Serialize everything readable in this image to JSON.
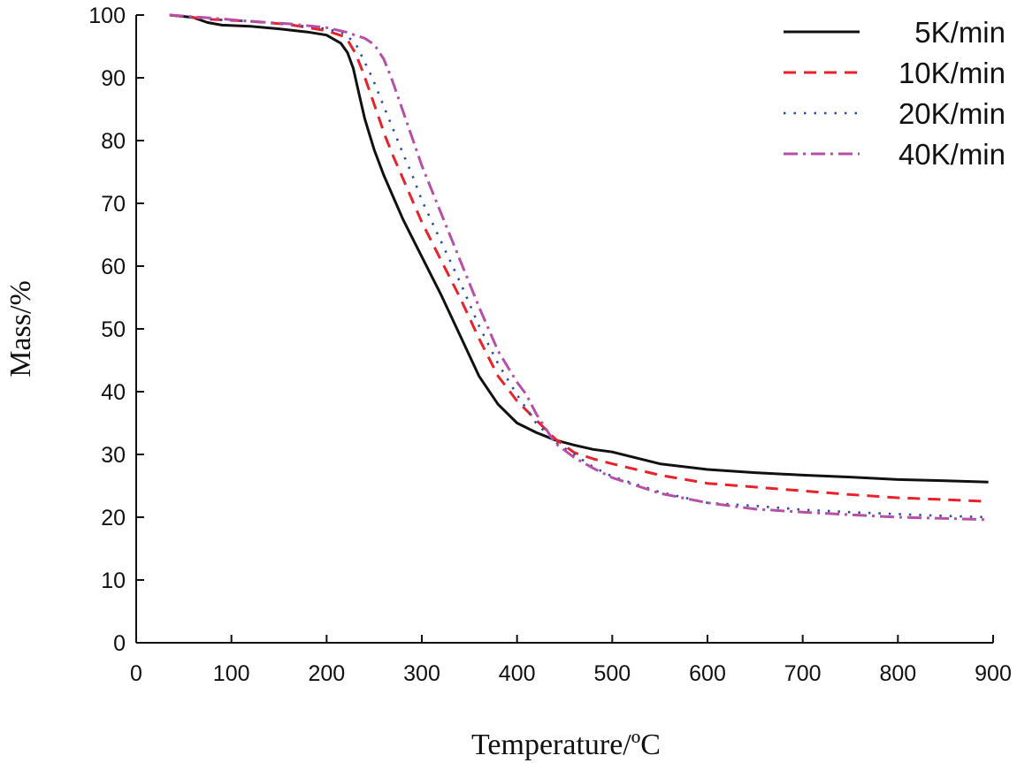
{
  "chart_data": {
    "type": "line",
    "title": "",
    "xlabel": "Temperature/ºC",
    "ylabel": "Mass/%",
    "xlim": [
      0,
      900
    ],
    "ylim": [
      0,
      100
    ],
    "xticks": [
      0,
      100,
      200,
      300,
      400,
      500,
      600,
      700,
      800,
      900
    ],
    "yticks": [
      0,
      10,
      20,
      30,
      40,
      50,
      60,
      70,
      80,
      90,
      100
    ],
    "grid": false,
    "legend_position": "top-right",
    "series": [
      {
        "name": "5K/min",
        "color": "#111111",
        "style": "solid",
        "x": [
          35,
          60,
          75,
          90,
          120,
          150,
          180,
          200,
          215,
          222,
          228,
          234,
          240,
          245,
          250,
          260,
          270,
          280,
          290,
          300,
          320,
          340,
          360,
          380,
          400,
          420,
          440,
          460,
          480,
          500,
          550,
          600,
          650,
          700,
          750,
          800,
          850,
          895
        ],
        "y": [
          100,
          99.6,
          98.8,
          98.4,
          98.2,
          97.8,
          97.3,
          96.8,
          95.5,
          94,
          91.5,
          87.5,
          83.5,
          81,
          78.5,
          74.5,
          71,
          67.5,
          64.5,
          61.5,
          55.5,
          49,
          42.5,
          38,
          35,
          33.5,
          32.3,
          31.5,
          30.8,
          30.4,
          28.5,
          27.6,
          27.1,
          26.7,
          26.4,
          26.0,
          25.8,
          25.6
        ]
      },
      {
        "name": "10K/min",
        "color": "#e8212a",
        "style": "dashed",
        "x": [
          35,
          80,
          120,
          160,
          200,
          220,
          230,
          238,
          246,
          254,
          262,
          270,
          280,
          290,
          300,
          320,
          340,
          360,
          380,
          400,
          420,
          440,
          460,
          480,
          500,
          550,
          600,
          650,
          700,
          750,
          800,
          850,
          895
        ],
        "y": [
          100,
          99.3,
          99.0,
          98.5,
          97.5,
          96.5,
          94,
          91,
          87.5,
          84,
          80.5,
          77.5,
          74,
          70.5,
          67,
          61,
          55,
          48.5,
          42.5,
          38.5,
          35.5,
          32.5,
          30.3,
          29.3,
          28.5,
          26.7,
          25.4,
          24.8,
          24.2,
          23.6,
          23.1,
          22.8,
          22.5
        ]
      },
      {
        "name": "20K/min",
        "color": "#2b4fa8",
        "style": "dotted",
        "x": [
          35,
          80,
          120,
          160,
          200,
          220,
          232,
          240,
          248,
          256,
          264,
          272,
          280,
          290,
          300,
          320,
          340,
          360,
          380,
          400,
          420,
          440,
          460,
          480,
          500,
          550,
          600,
          650,
          700,
          750,
          800,
          850,
          895
        ],
        "y": [
          100,
          99.3,
          99.0,
          98.5,
          97.8,
          97,
          95,
          92.5,
          90,
          87,
          84,
          81,
          78,
          74.5,
          70.5,
          64,
          57.5,
          50.5,
          44.5,
          39.5,
          35,
          32,
          30,
          28,
          26.5,
          24,
          22.3,
          21.8,
          21.2,
          20.8,
          20.5,
          20.2,
          20.0
        ]
      },
      {
        "name": "40K/min",
        "color": "#b84ea6",
        "style": "dashdot",
        "x": [
          35,
          80,
          120,
          160,
          200,
          220,
          240,
          250,
          260,
          268,
          276,
          284,
          292,
          300,
          320,
          340,
          360,
          380,
          400,
          410,
          420,
          440,
          460,
          480,
          500,
          550,
          600,
          650,
          700,
          750,
          800,
          850,
          895
        ],
        "y": [
          100,
          99.5,
          99.0,
          98.6,
          98.0,
          97.3,
          96.3,
          95.3,
          93,
          90,
          86.5,
          83,
          79.5,
          76,
          68.5,
          61,
          53.5,
          46.5,
          41.5,
          39.5,
          36.5,
          31.8,
          29.5,
          27.8,
          26.3,
          23.8,
          22.3,
          21.3,
          20.8,
          20.4,
          20.0,
          19.8,
          19.6
        ]
      }
    ]
  }
}
